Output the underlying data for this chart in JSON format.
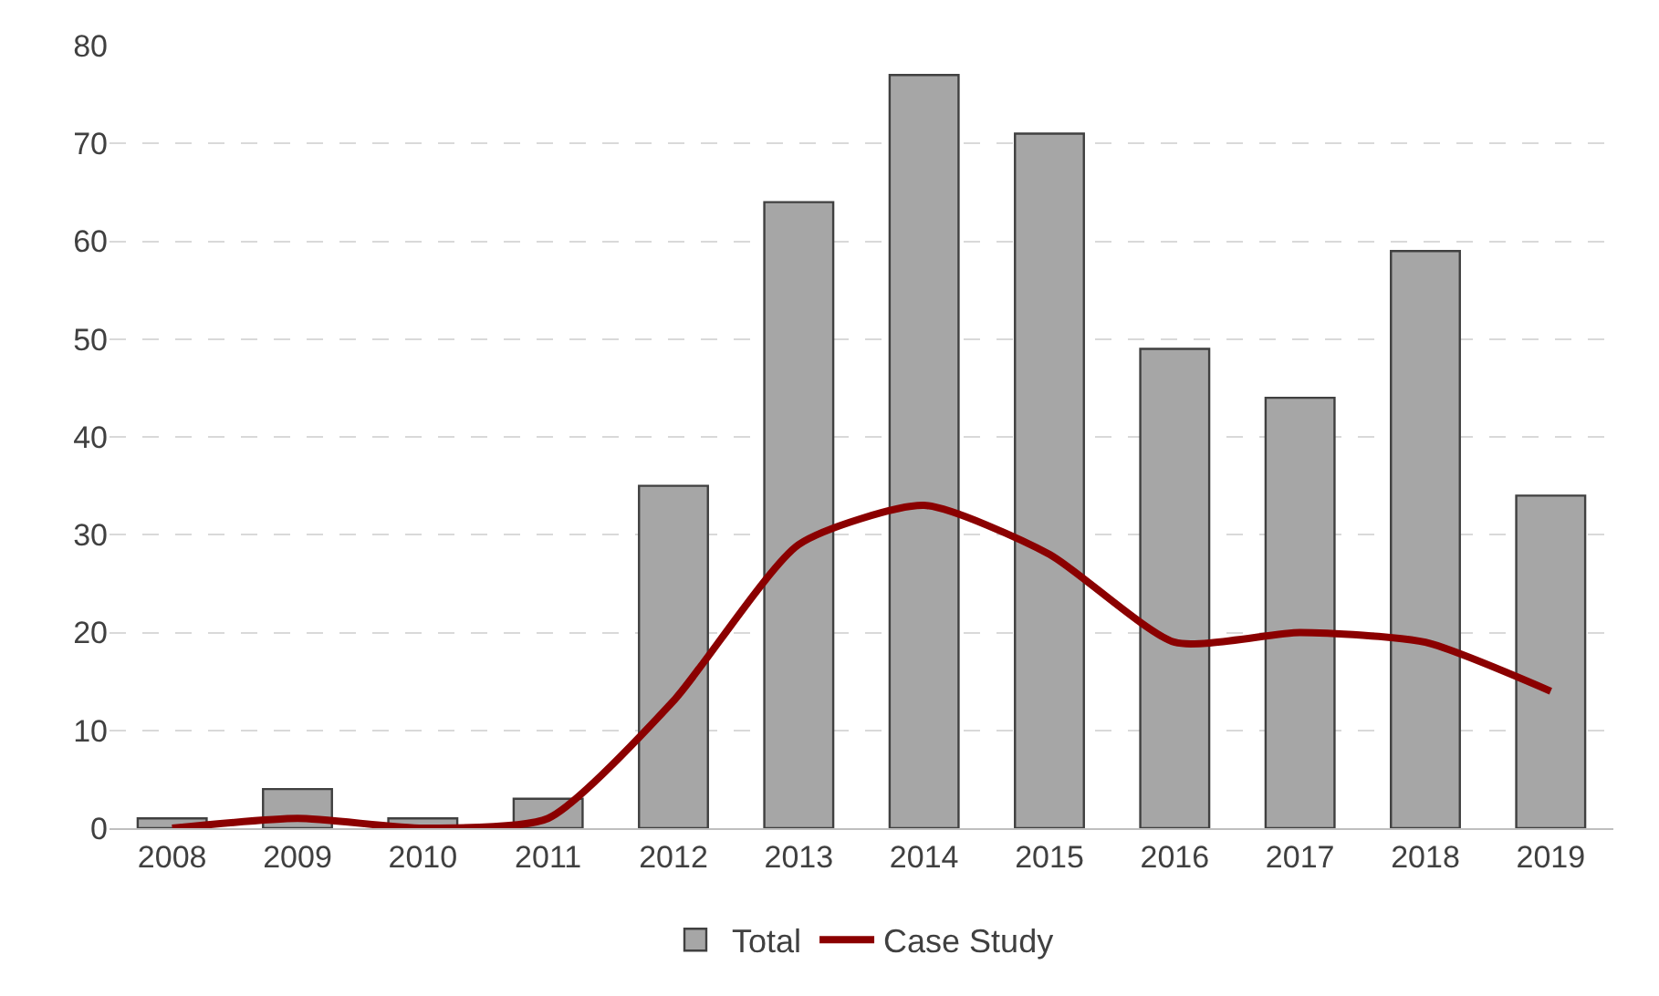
{
  "chart_data": {
    "type": "bar",
    "categories": [
      "2008",
      "2009",
      "2010",
      "2011",
      "2012",
      "2013",
      "2014",
      "2015",
      "2016",
      "2017",
      "2018",
      "2019"
    ],
    "series": [
      {
        "name": "Total",
        "color": "#a6a6a6",
        "values": [
          1,
          4,
          1,
          3,
          35,
          64,
          77,
          71,
          49,
          44,
          59,
          34
        ]
      },
      {
        "name": "Case Study",
        "type": "line",
        "color": "#8b0000",
        "values": [
          0,
          1,
          0,
          1,
          13,
          29,
          33,
          28,
          19,
          20,
          19,
          14
        ]
      }
    ],
    "ylim": [
      0,
      80
    ],
    "yticks": [
      0,
      10,
      20,
      30,
      40,
      50,
      60,
      70,
      80
    ],
    "grid": "y",
    "legend": "bottom",
    "marker": "none",
    "line_style": "solid"
  }
}
